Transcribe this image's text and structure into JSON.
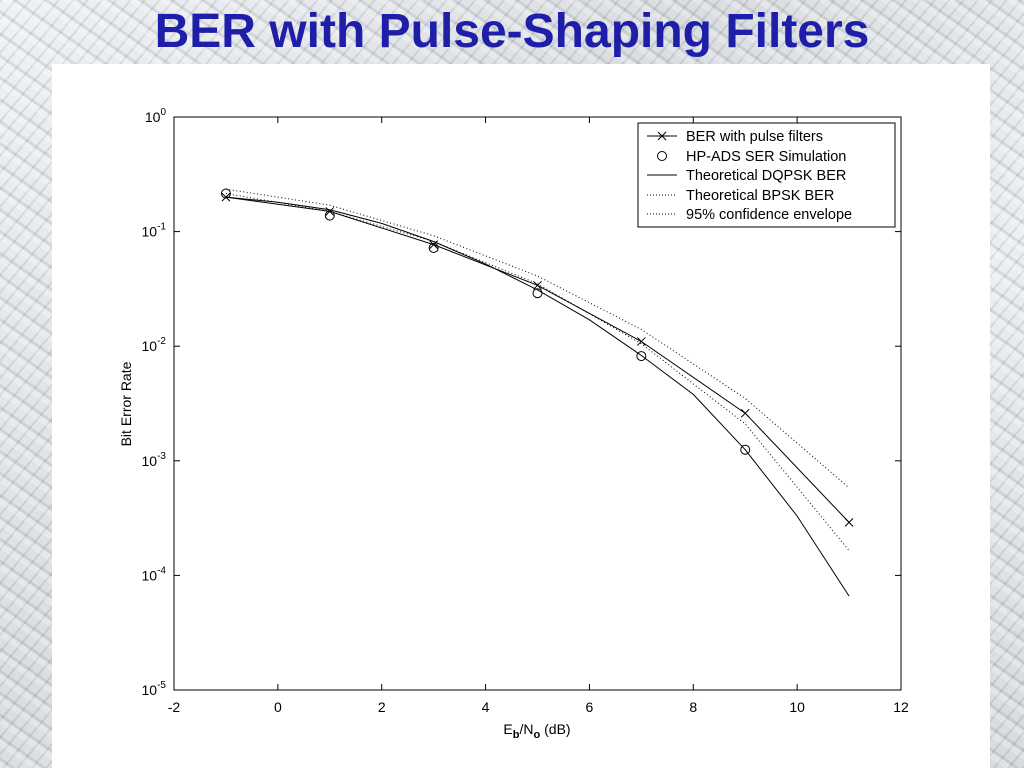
{
  "slide": {
    "title": "BER with Pulse-Shaping Filters"
  },
  "chart_data": {
    "type": "line",
    "y_scale": "log",
    "xlim": [
      -2,
      12
    ],
    "ylim": [
      1e-05,
      1
    ],
    "x_ticks": [
      "-2",
      "0",
      "2",
      "4",
      "6",
      "8",
      "10",
      "12"
    ],
    "y_ticks": [
      {
        "base": "10",
        "exp": "0"
      },
      {
        "base": "10",
        "exp": "-1"
      },
      {
        "base": "10",
        "exp": "-2"
      },
      {
        "base": "10",
        "exp": "-3"
      },
      {
        "base": "10",
        "exp": "-4"
      },
      {
        "base": "10",
        "exp": "-5"
      }
    ],
    "ylabel": "Bit Error Rate",
    "xlabel": {
      "main": "E",
      "sub1": "b",
      "mid": "/N",
      "sub2": "o",
      "tail": " (dB)"
    },
    "legend_position": "top-right",
    "grid": false,
    "series": [
      {
        "name": "BER with pulse filters",
        "style": "solid-x",
        "x": [
          -1,
          1,
          3,
          5,
          7,
          9,
          11
        ],
        "y": [
          0.2,
          0.15,
          0.077,
          0.034,
          0.011,
          0.0026,
          0.00029
        ]
      },
      {
        "name": "HP-ADS SER Simulation",
        "style": "circle",
        "x": [
          -1,
          1,
          3,
          5,
          7,
          9
        ],
        "y": [
          0.215,
          0.138,
          0.072,
          0.029,
          0.0082,
          0.00125
        ]
      },
      {
        "name": "Theoretical DQPSK BER",
        "style": "solid",
        "x": [
          -1,
          0,
          1,
          2,
          3,
          4,
          5,
          6,
          7,
          8,
          9,
          10,
          11
        ],
        "y": [
          0.2,
          0.18,
          0.155,
          0.118,
          0.082,
          0.052,
          0.031,
          0.017,
          0.0083,
          0.0038,
          0.00125,
          0.00033,
          6.6e-05
        ]
      },
      {
        "name": "Theoretical BPSK BER",
        "style": "dotted",
        "x": [
          -1,
          1,
          3,
          5,
          7,
          9,
          11
        ],
        "y": [
          0.215,
          0.15,
          0.082,
          0.035,
          0.0105,
          0.0021,
          0.000165
        ]
      },
      {
        "name": "95% confidence envelope",
        "style": "dotted",
        "x": [
          -1,
          1,
          3,
          5,
          7,
          9,
          11
        ],
        "y": [
          0.235,
          0.17,
          0.092,
          0.041,
          0.014,
          0.0035,
          0.00058
        ]
      }
    ]
  }
}
